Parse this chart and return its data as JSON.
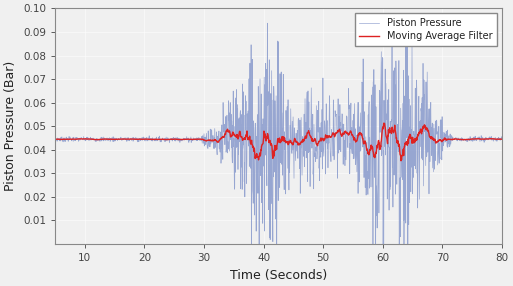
{
  "xlabel": "Time (Seconds)",
  "ylabel": "Piston Pressure (Bar)",
  "xlim": [
    5,
    80
  ],
  "ylim": [
    0,
    0.1
  ],
  "xticks": [
    10,
    20,
    30,
    40,
    50,
    60,
    70,
    80
  ],
  "yticks": [
    0.01,
    0.02,
    0.03,
    0.04,
    0.05,
    0.06,
    0.07,
    0.08,
    0.09,
    0.1
  ],
  "blue_color": "#8899cc",
  "red_color": "#dd2222",
  "legend_labels": [
    "Piston Pressure",
    "Moving Average Filter"
  ],
  "baseline": 0.0445,
  "fs": 20,
  "seed": 7,
  "bg_color": "#f0f0f0"
}
